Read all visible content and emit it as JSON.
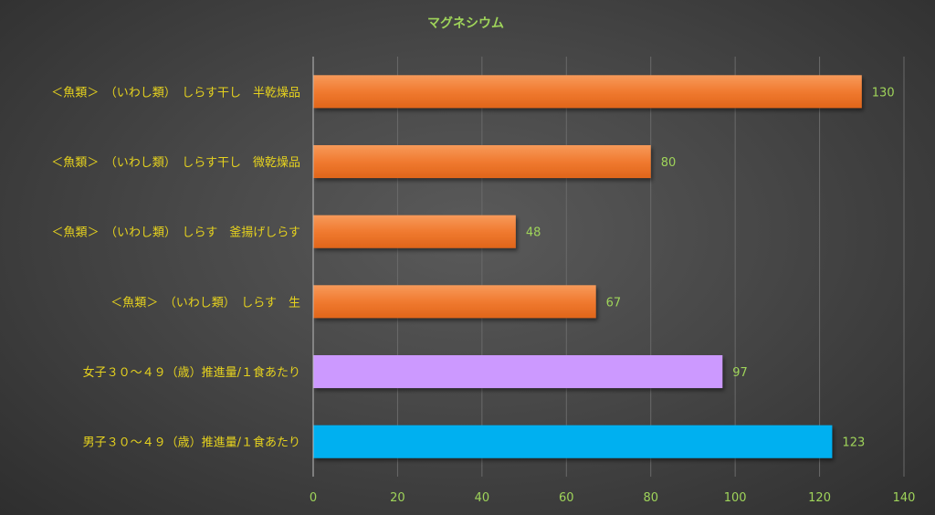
{
  "chart_data": {
    "type": "bar",
    "orientation": "horizontal",
    "title": "マグネシウム",
    "categories": [
      "＜魚類＞　（いわし類）　しらす干し　半乾燥品",
      "＜魚類＞　（いわし類）　しらす干し　微乾燥品",
      "＜魚類＞　（いわし類）　しらす　釜揚げしらす",
      "＜魚類＞　（いわし類）　しらす　生",
      "女子３０～４９（歳）推進量/１食あたり",
      "男子３０～４９（歳）推進量/１食あたり"
    ],
    "values": [
      130,
      80,
      48,
      67,
      97,
      123
    ],
    "bar_colors": [
      "#f07a30",
      "#f07a30",
      "#f07a30",
      "#f07a30",
      "#cc99ff",
      "#00b0f0"
    ],
    "xlim": [
      0,
      140
    ],
    "xticks": [
      0,
      20,
      40,
      60,
      80,
      100,
      120,
      140
    ],
    "grid": true,
    "legend": "none"
  }
}
